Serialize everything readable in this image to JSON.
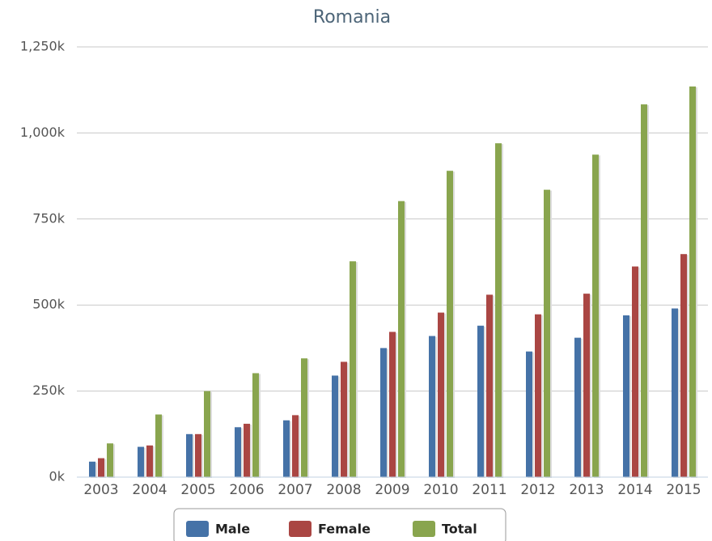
{
  "chart_data": {
    "type": "bar",
    "title": "Romania",
    "categories": [
      "2003",
      "2004",
      "2005",
      "2006",
      "2007",
      "2008",
      "2009",
      "2010",
      "2011",
      "2012",
      "2013",
      "2014",
      "2015"
    ],
    "series": [
      {
        "name": "Male",
        "color": "#4572a7",
        "values": [
          45,
          88,
          125,
          145,
          165,
          295,
          375,
          410,
          440,
          365,
          405,
          470,
          490
        ]
      },
      {
        "name": "Female",
        "color": "#aa4643",
        "values": [
          55,
          92,
          125,
          155,
          180,
          335,
          422,
          478,
          530,
          473,
          533,
          612,
          648
        ]
      },
      {
        "name": "Total",
        "color": "#89a54e",
        "values": [
          98,
          182,
          250,
          302,
          345,
          627,
          802,
          890,
          970,
          835,
          937,
          1083,
          1135
        ]
      }
    ],
    "ylim": [
      0,
      1250
    ],
    "yticks": [
      {
        "value": 0,
        "label": "0k"
      },
      {
        "value": 250,
        "label": "250k"
      },
      {
        "value": 500,
        "label": "500k"
      },
      {
        "value": 750,
        "label": "750k"
      },
      {
        "value": 1000,
        "label": "1,000k"
      },
      {
        "value": 1250,
        "label": "1,250k"
      }
    ],
    "grid": true,
    "legend": "bottom"
  }
}
